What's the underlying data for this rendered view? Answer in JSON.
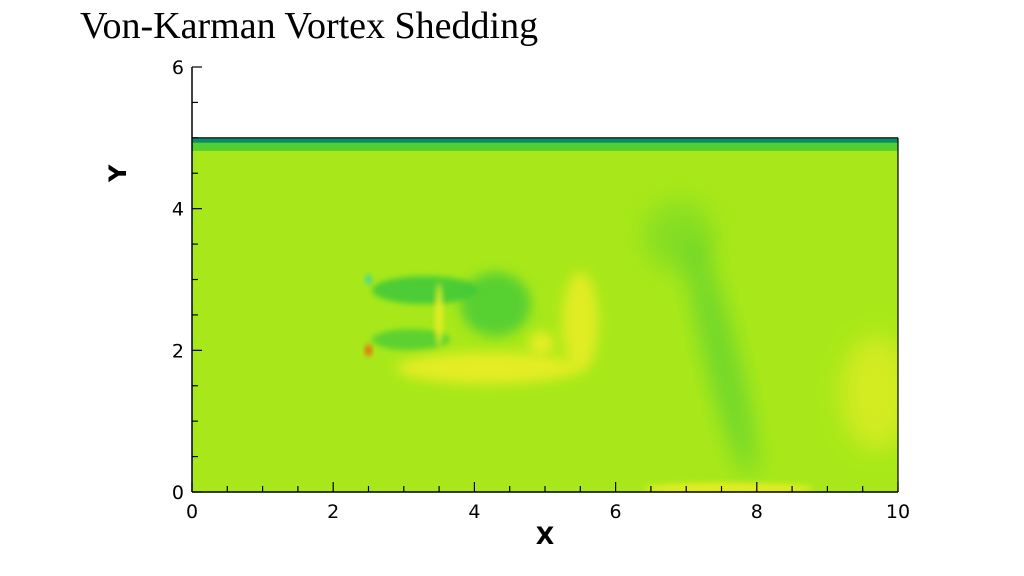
{
  "chart_data": {
    "type": "heatmap",
    "title": "Von-Karman Vortex Shedding",
    "xlabel": "X",
    "ylabel": "Y",
    "xlim": [
      0,
      10
    ],
    "ylim": [
      0,
      6
    ],
    "x_ticks": [
      "0",
      "2",
      "4",
      "6",
      "8",
      "10"
    ],
    "y_ticks": [
      "0",
      "2",
      "4",
      "6"
    ],
    "x_tick_values": [
      0,
      2,
      4,
      6,
      8,
      10
    ],
    "y_tick_values": [
      0,
      2,
      4,
      6
    ],
    "field_extent": {
      "x": [
        0,
        10
      ],
      "y": [
        0,
        5
      ]
    },
    "background_color": "#a8e81a",
    "obstacle": {
      "x": [
        2.5,
        3.5
      ],
      "y": [
        2,
        3
      ]
    },
    "colors": {
      "field": "#a8e81a",
      "low": "#3cc83a",
      "high": "#f0ee26",
      "hot": "#ff3c10",
      "cold": "#18d2d8",
      "wall": "#0a8c64"
    },
    "grid": false
  }
}
